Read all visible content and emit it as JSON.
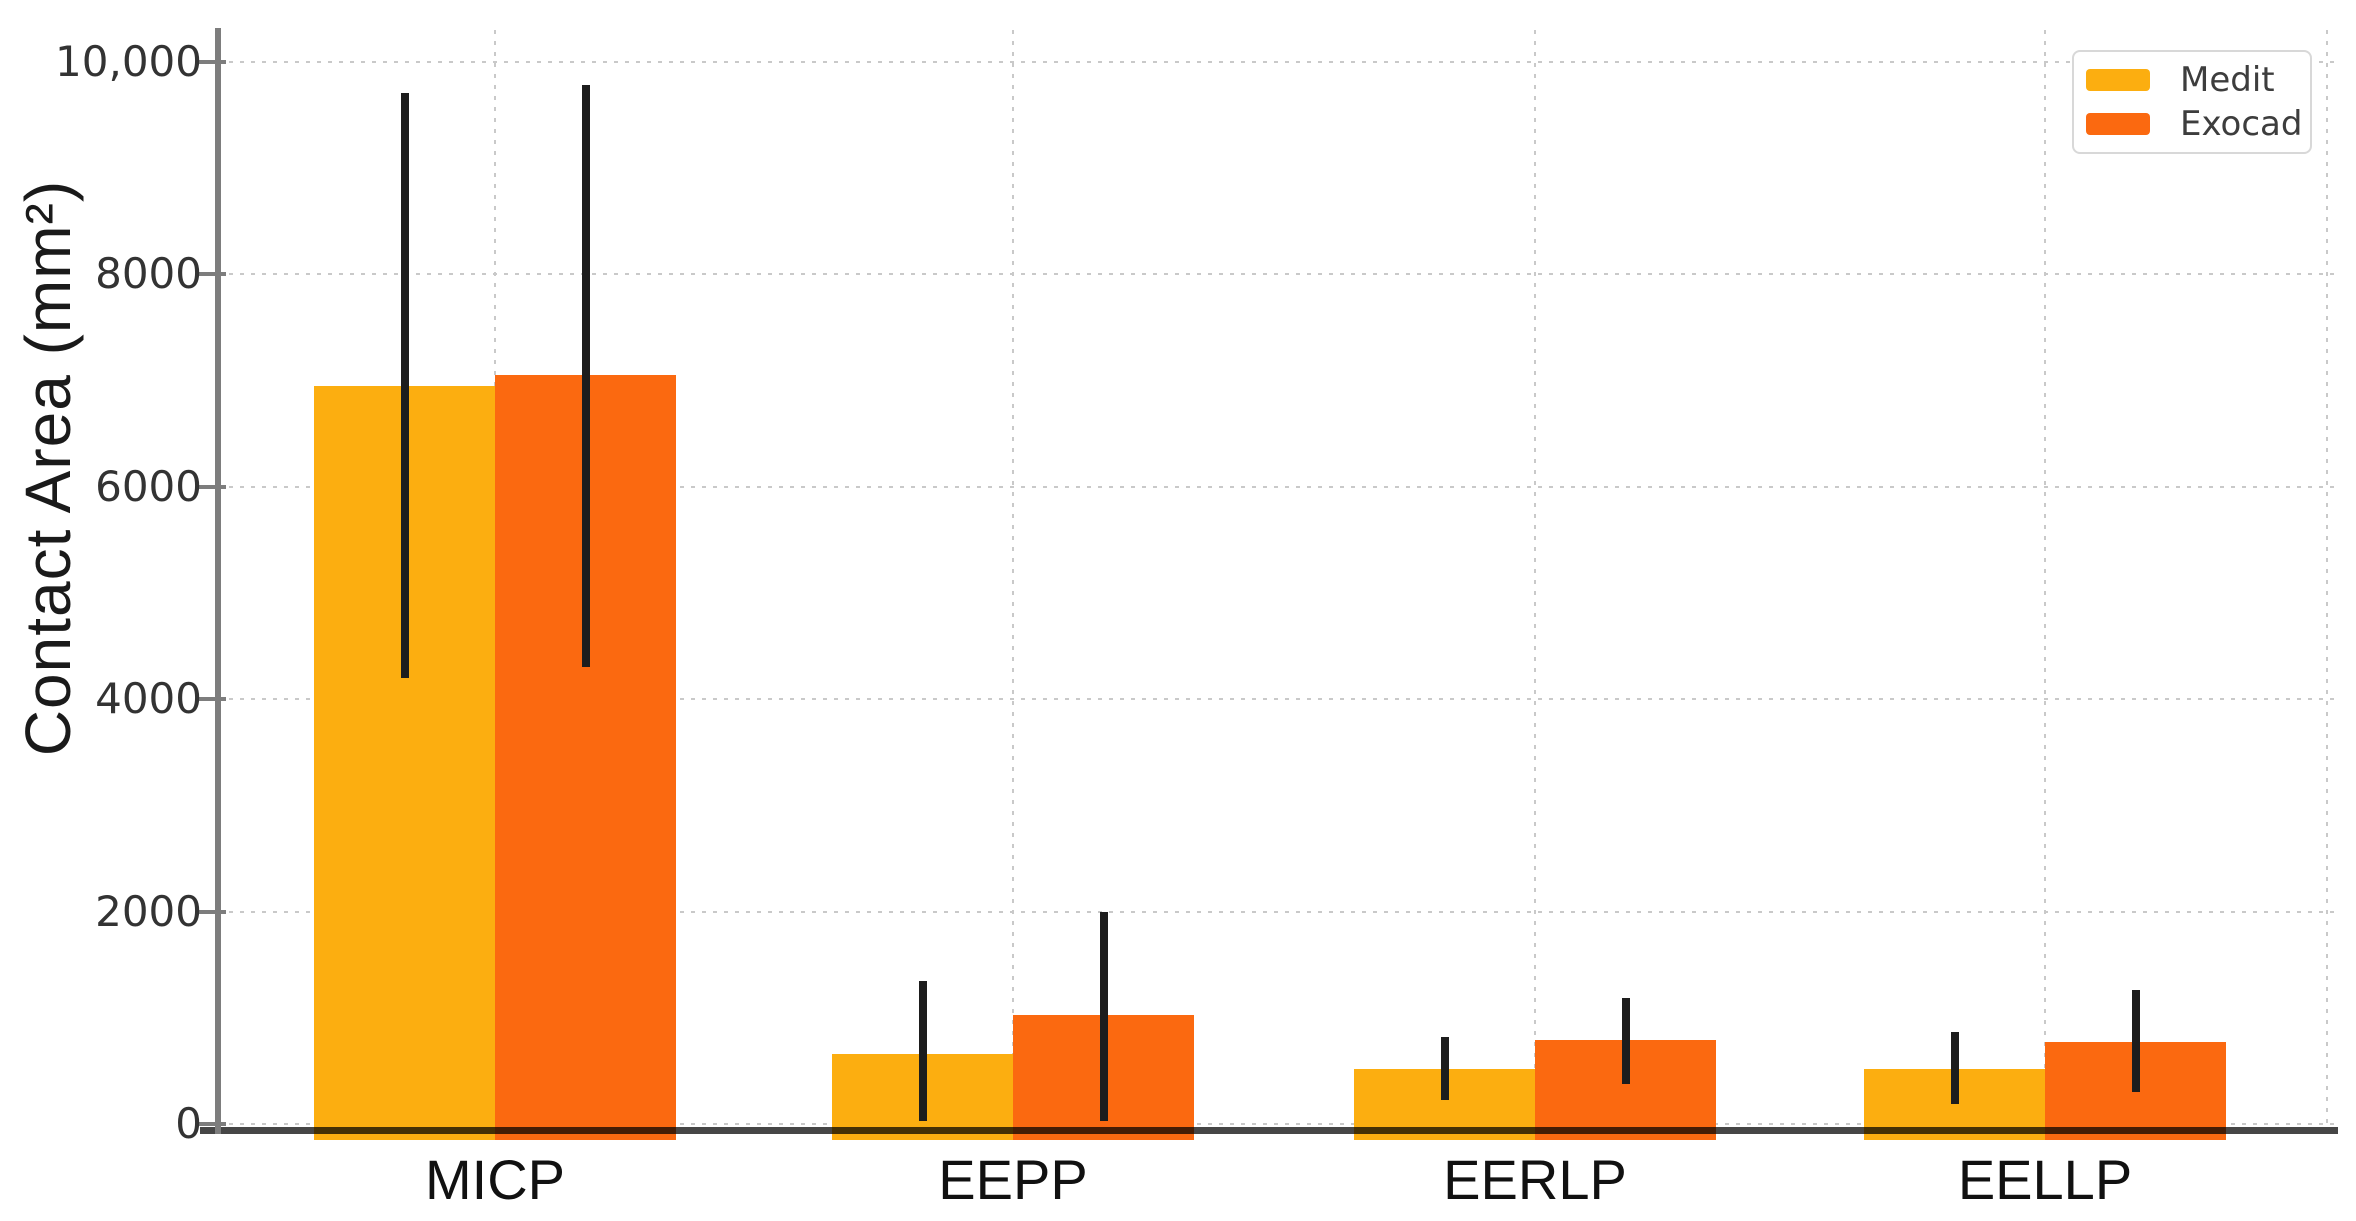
{
  "chart_data": {
    "type": "bar",
    "title": "",
    "xlabel": "",
    "ylabel": "Contact Area (mm²)",
    "categories": [
      "MICP",
      "EEPP",
      "EERLP",
      "EELLP"
    ],
    "series": [
      {
        "name": "Medit",
        "color": "#FCAE10",
        "values": [
          6950,
          660,
          520,
          520
        ],
        "error_low": [
          4200,
          30,
          230,
          190
        ],
        "error_high": [
          9700,
          1350,
          820,
          870
        ]
      },
      {
        "name": "Exocad",
        "color": "#FB6910",
        "values": [
          7050,
          1030,
          790,
          770
        ],
        "error_low": [
          4300,
          30,
          380,
          300
        ],
        "error_high": [
          9780,
          2000,
          1190,
          1260
        ]
      }
    ],
    "yticks": [
      {
        "value": 0,
        "label": "0"
      },
      {
        "value": 2000,
        "label": "2000"
      },
      {
        "value": 4000,
        "label": "4000"
      },
      {
        "value": 6000,
        "label": "6000"
      },
      {
        "value": 8000,
        "label": "8000"
      },
      {
        "value": 10000,
        "label": "10,000"
      }
    ],
    "ylim": [
      0,
      10300
    ],
    "grid": "dotted",
    "error_bar_color": "#1d1d1d",
    "legend_position": "top-right"
  }
}
